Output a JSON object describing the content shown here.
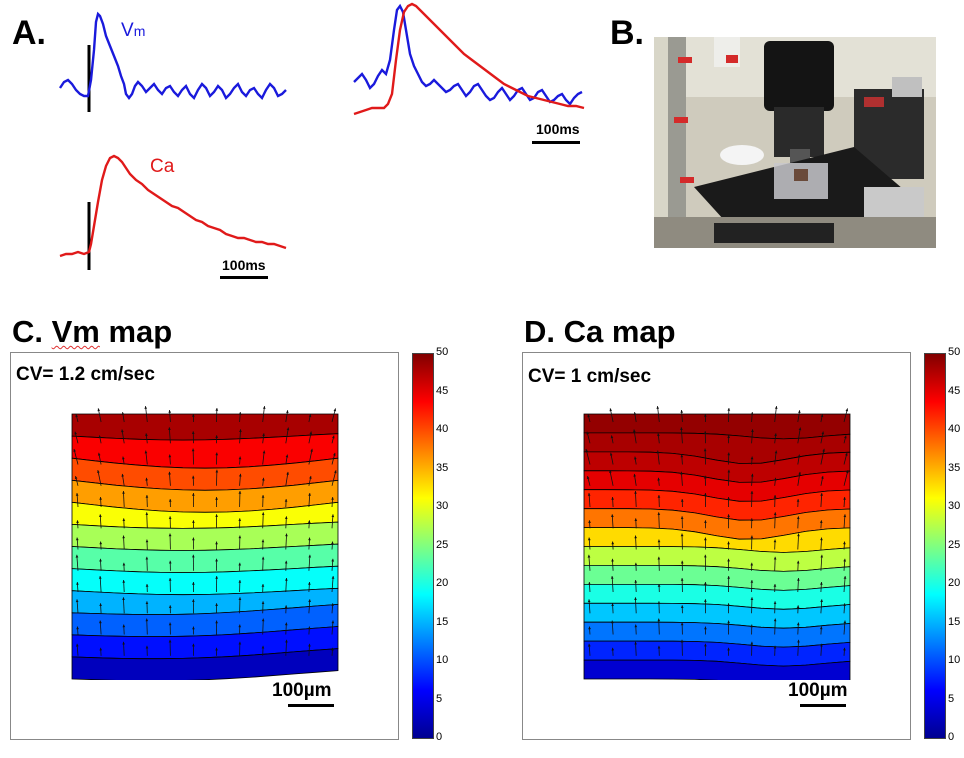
{
  "panel_a": {
    "label": "A.",
    "vm_label_main": "V",
    "vm_label_sub": "m",
    "ca_label": "Ca",
    "scale_top": "100ms",
    "scale_bottom": "100ms",
    "colors": {
      "vm": "#1a1adc",
      "ca": "#e01a1a"
    }
  },
  "panel_b": {
    "label": "B.",
    "photo_icon": "microscope-rig-photo"
  },
  "panel_c": {
    "title_main": "C. ",
    "title_vm": "Vm",
    "title_rest": " map",
    "cv_text": "CV= 1.2 cm/sec",
    "scale_text": "100µm"
  },
  "panel_d": {
    "title": "D. Ca map",
    "cv_text": "CV= 1 cm/sec",
    "scale_text": "100µm"
  },
  "colorbar": {
    "ticks": [
      "50",
      "45",
      "40",
      "35",
      "30",
      "25",
      "20",
      "15",
      "10",
      "5",
      "0"
    ],
    "min": 0,
    "max": 50,
    "colormap": "jet"
  },
  "chart_data": [
    {
      "type": "contour",
      "title": "C. Vm map",
      "annotation": "CV= 1.2 cm/sec",
      "scale_bar": "100µm",
      "colorbar_range": [
        0,
        50
      ],
      "colorbar_ticks": [
        0,
        5,
        10,
        15,
        20,
        25,
        30,
        35,
        40,
        45,
        50
      ],
      "row_bands": [
        48,
        44,
        40,
        36,
        31,
        27,
        23,
        19,
        15,
        11,
        7,
        3
      ]
    },
    {
      "type": "contour",
      "title": "D. Ca map",
      "annotation": "CV= 1 cm/sec",
      "scale_bar": "100µm",
      "colorbar_range": [
        0,
        50
      ],
      "colorbar_ticks": [
        0,
        5,
        10,
        15,
        20,
        25,
        30,
        35,
        40,
        45,
        50
      ],
      "row_bands": [
        49,
        48,
        47,
        45,
        42,
        38,
        33,
        28,
        24,
        20,
        16,
        12,
        8,
        4
      ]
    }
  ]
}
